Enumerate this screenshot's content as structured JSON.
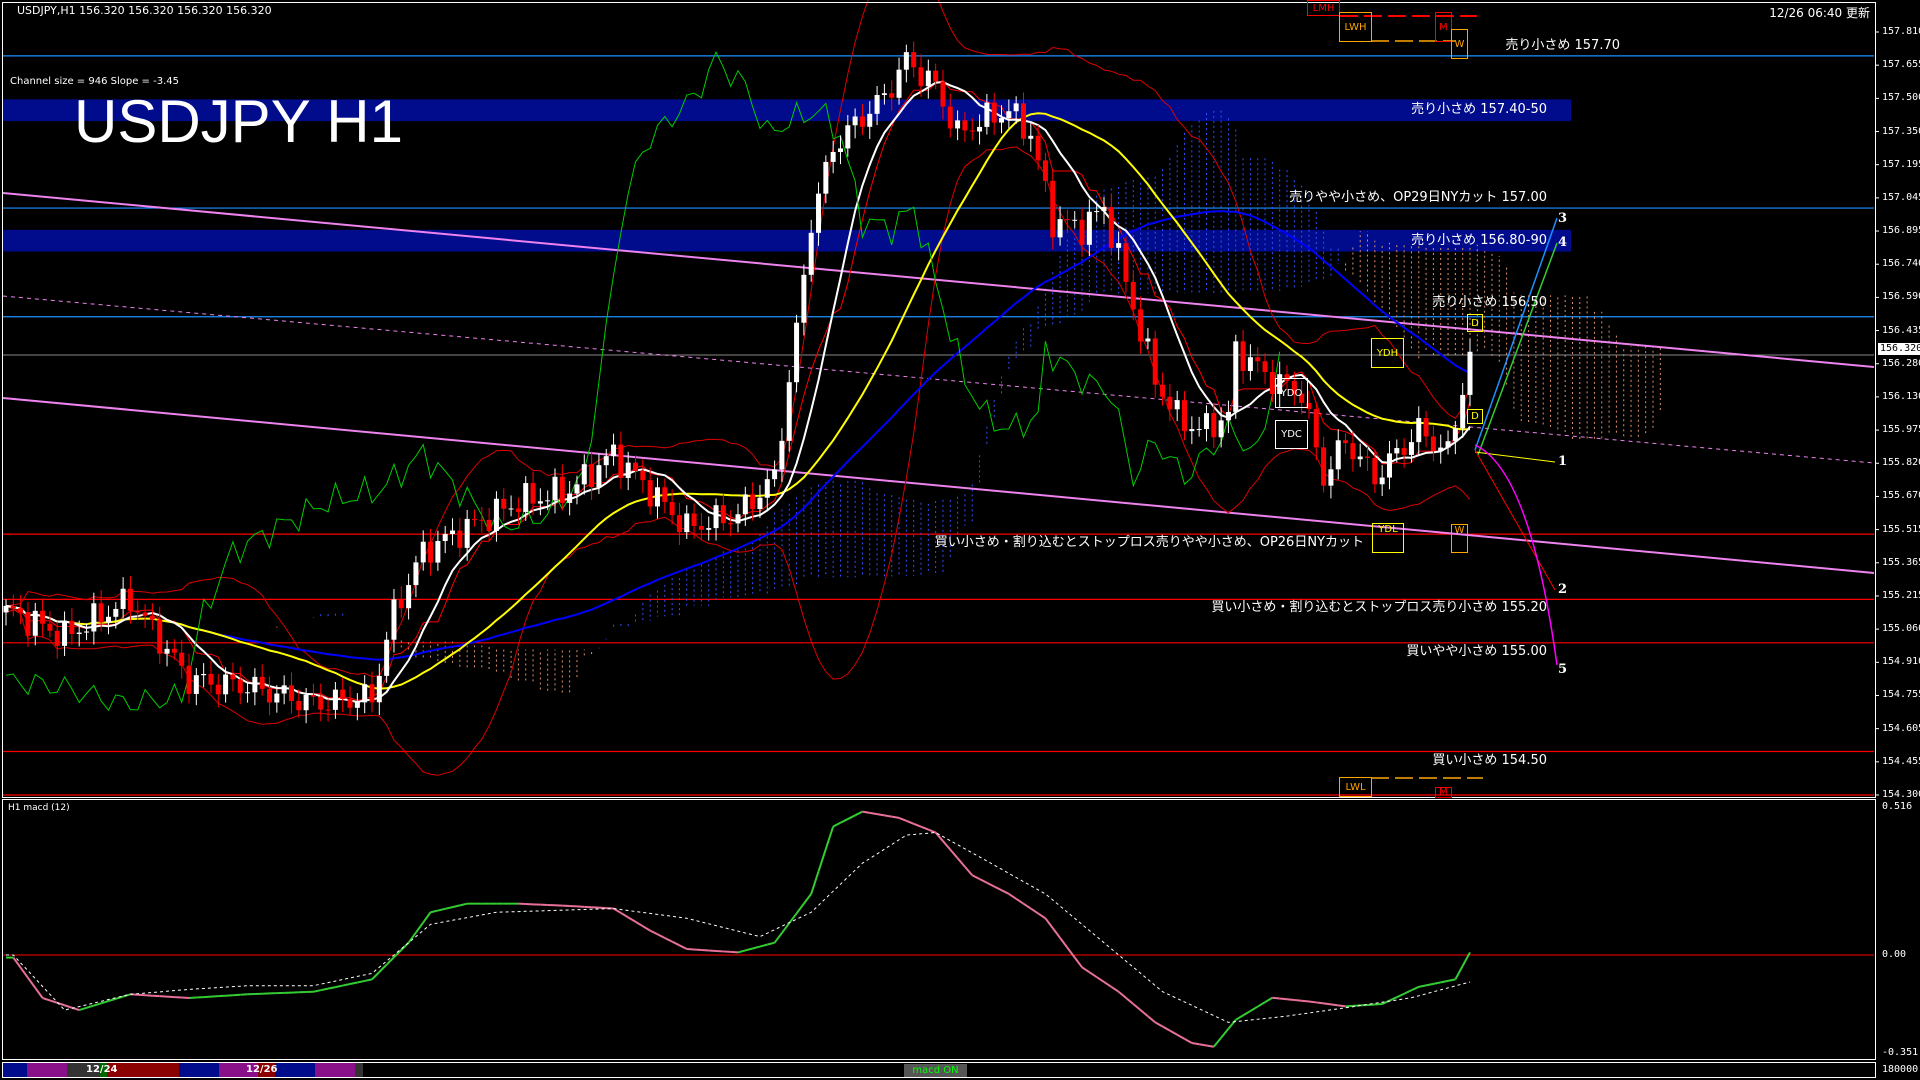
{
  "header": {
    "symbol_info": "USDJPY,H1  156.320 156.320 156.320 156.320",
    "timestamp": "12/26 06:40 更新"
  },
  "title": "USDJPY H1",
  "channel_info": "Channel size = 946 Slope = -3.45",
  "price_axis": [
    "157.810",
    "157.655",
    "157.500",
    "157.350",
    "157.195",
    "157.045",
    "156.895",
    "156.740",
    "156.590",
    "156.435",
    "156.280",
    "156.130",
    "155.975",
    "155.820",
    "155.670",
    "155.515",
    "155.365",
    "155.215",
    "155.060",
    "154.910",
    "154.755",
    "154.605",
    "154.455",
    "154.300"
  ],
  "current_price": "156.320",
  "levels": [
    {
      "price": 157.7,
      "color": "#1e90ff",
      "text": "売り小さめ 157.70",
      "side": "above"
    },
    {
      "price": 157.0,
      "color": "#1e90ff",
      "text": "売りやや小さめ、OP29日NYカット 157.00",
      "side": "above"
    },
    {
      "price": 156.5,
      "color": "#1e90ff",
      "text": "売り小さめ 156.50",
      "side": "above"
    },
    {
      "price": 155.5,
      "color": "#ff0000",
      "text": "買い小さめ・割り込むとストップロス売りやや小さめ、OP26日NYカット",
      "side": "below"
    },
    {
      "price": 155.2,
      "color": "#ff0000",
      "text": "買い小さめ・割り込むとストップロス売り小さめ 155.20",
      "side": "below"
    },
    {
      "price": 155.0,
      "color": "#ff0000",
      "text": "買いやや小さめ 155.00",
      "side": "below"
    },
    {
      "price": 154.5,
      "color": "#ff0000",
      "text": "買い小さめ 154.50",
      "side": "below"
    },
    {
      "price": 154.3,
      "color": "#ff0000",
      "text": "",
      "side": "below"
    }
  ],
  "zones": [
    {
      "from": 157.4,
      "to": 157.5,
      "color": "#000c8c",
      "text": "売り小さめ 157.40-50"
    },
    {
      "from": 156.8,
      "to": 156.9,
      "color": "#000c8c",
      "text": "売り小さめ 156.80-90"
    }
  ],
  "projection_labels": [
    "1",
    "2",
    "3",
    "4",
    "5"
  ],
  "boxes": {
    "lmh": "LMH",
    "lwh": "LWH",
    "m_top": "M",
    "w_top": "W",
    "ydh": "YDH",
    "ydo": "YDO",
    "ydc": "YDC",
    "ydl": "YDL",
    "d_top": "D",
    "d_bottom": "D",
    "w_bottom": "W",
    "lwl": "LWL",
    "m_bottom": "M"
  },
  "macd": {
    "label": "H1  macd (12)",
    "axis": [
      "0.516",
      "0.00",
      "-0.351"
    ],
    "volume_axis": "180000",
    "button": "macd ON"
  },
  "dates": [
    "12/24",
    "12/26"
  ],
  "colors": {
    "up": "#ffffff",
    "down": "#ff0000",
    "ma_fast": "#ffffff",
    "ma_mid": "#ffff00",
    "ma_slow": "#0000ff",
    "macd_up": "#33cc33",
    "macd_down": "#e8709a",
    "channel": "#ee82ee"
  },
  "chart_data": {
    "type": "candlestick",
    "symbol": "USDJPY",
    "timeframe": "H1",
    "ylim": [
      154.3,
      157.81
    ],
    "close_samples": {
      "bar": [
        1,
        8,
        17,
        25,
        33,
        42,
        50,
        53,
        57,
        63,
        70,
        77,
        83,
        88,
        93,
        100,
        105,
        108,
        110,
        113,
        117,
        120,
        123,
        127,
        130,
        133,
        137,
        140,
        143,
        147,
        150,
        153,
        157,
        160,
        163,
        167,
        168,
        173,
        177,
        180,
        183,
        187,
        190,
        193,
        197,
        200
      ],
      "close": [
        155.14,
        155.03,
        155.2,
        154.83,
        154.8,
        154.72,
        154.75,
        155.14,
        155.42,
        155.53,
        155.65,
        155.7,
        155.87,
        155.7,
        155.53,
        155.59,
        155.76,
        156.43,
        156.94,
        157.28,
        157.42,
        157.51,
        157.68,
        157.56,
        157.34,
        157.4,
        157.45,
        157.34,
        156.94,
        156.91,
        157.0,
        156.66,
        156.21,
        156.04,
        155.98,
        156.04,
        156.35,
        156.21,
        156.15,
        155.76,
        155.93,
        155.76,
        155.87,
        155.98,
        155.87,
        156.32
      ]
    },
    "macd_series": {
      "bar": [
        1,
        5,
        10,
        17,
        25,
        33,
        42,
        50,
        55,
        58,
        63,
        70,
        77,
        83,
        88,
        93,
        100,
        105,
        110,
        113,
        117,
        122,
        127,
        132,
        137,
        142,
        147,
        152,
        157,
        162,
        165,
        168,
        173,
        178,
        183,
        188,
        193,
        198,
        200
      ],
      "main": [
        -0.009,
        -0.15,
        -0.192,
        -0.137,
        -0.15,
        -0.137,
        -0.128,
        -0.085,
        0.043,
        0.149,
        0.179,
        0.179,
        0.171,
        0.162,
        0.085,
        0.021,
        0.009,
        0.043,
        0.213,
        0.448,
        0.5,
        0.478,
        0.427,
        0.278,
        0.213,
        0.128,
        -0.043,
        -0.128,
        -0.235,
        -0.307,
        -0.32,
        -0.226,
        -0.149,
        -0.162,
        -0.179,
        -0.171,
        -0.111,
        -0.085,
        0.009
      ]
    },
    "signal_series": {
      "bar": [
        1,
        8,
        17,
        25,
        33,
        42,
        50,
        58,
        67,
        83,
        93,
        103,
        110,
        117,
        123,
        127,
        133,
        142,
        150,
        158,
        167,
        175,
        183,
        192,
        200
      ],
      "signal": [
        0.0,
        -0.192,
        -0.137,
        -0.12,
        -0.107,
        -0.107,
        -0.064,
        0.107,
        0.149,
        0.162,
        0.128,
        0.064,
        0.149,
        0.32,
        0.418,
        0.427,
        0.342,
        0.213,
        0.043,
        -0.128,
        -0.235,
        -0.213,
        -0.184,
        -0.149,
        -0.094
      ]
    },
    "macd_ylim": [
      -0.351,
      0.516
    ]
  }
}
